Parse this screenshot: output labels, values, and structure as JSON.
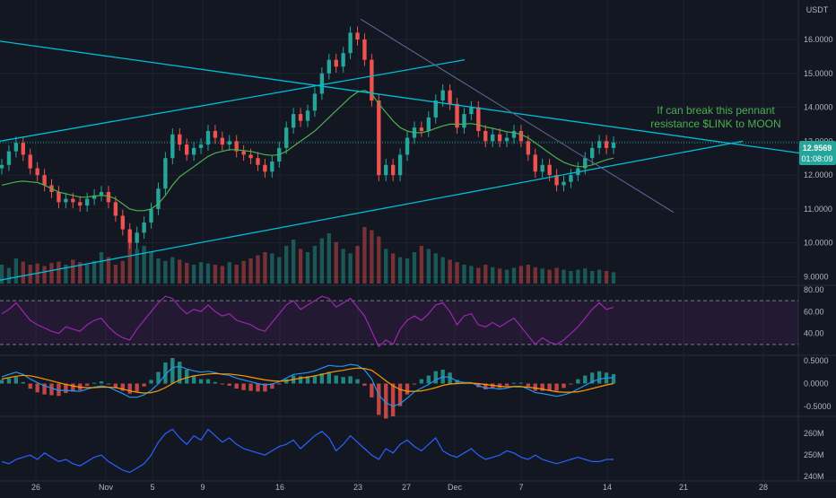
{
  "symbol_currency": "USDT",
  "colors": {
    "background": "#131722",
    "up": "#26a69a",
    "down": "#ef5350",
    "trendline": "#00bcd4",
    "ma": "#4caf50",
    "rsi": "#9c27b0",
    "macd": "#2196f3",
    "signal": "#ff9800",
    "obv": "#2962ff",
    "annotation": "#4caf50",
    "grid": "#1e222d"
  },
  "annotation": {
    "line1": "If can break this pennant",
    "line2": "resistance $LINK to MOON"
  },
  "price_badge": {
    "price": "12.9569",
    "countdown": "01:08:09"
  },
  "chart_data": [
    {
      "type": "candlestick",
      "panel": "price",
      "title": "",
      "y_ticks": [
        "16.0000",
        "15.0000",
        "14.0000",
        "13.0000",
        "12.0000",
        "11.0000",
        "10.0000",
        "9.0000"
      ],
      "ylim": [
        8.8,
        16.9
      ],
      "x_ticks": [
        "26",
        "Nov",
        "5",
        "9",
        "16",
        "23",
        "27",
        "Dec",
        "7",
        "14",
        "21",
        "28"
      ],
      "close_path": [
        12.3,
        12.7,
        12.95,
        12.6,
        12.2,
        12.0,
        11.7,
        11.5,
        11.2,
        11.3,
        11.2,
        11.1,
        11.3,
        11.4,
        11.5,
        11.2,
        10.8,
        10.4,
        10.0,
        10.3,
        10.6,
        11.0,
        11.6,
        12.5,
        13.2,
        12.9,
        12.6,
        12.8,
        12.9,
        13.3,
        13.1,
        12.9,
        13.0,
        12.7,
        12.6,
        12.5,
        12.3,
        12.1,
        12.4,
        12.8,
        13.4,
        13.8,
        13.6,
        13.9,
        14.4,
        15.0,
        15.4,
        15.2,
        15.6,
        16.2,
        16.0,
        15.4,
        14.2,
        12.0,
        12.3,
        12.0,
        12.6,
        13.1,
        13.4,
        13.3,
        13.7,
        14.2,
        14.5,
        14.1,
        13.4,
        13.8,
        14.0,
        13.3,
        13.0,
        13.2,
        13.0,
        13.1,
        13.3,
        13.0,
        12.6,
        12.1,
        12.3,
        12.0,
        11.7,
        11.8,
        12.0,
        12.2,
        12.5,
        12.8,
        13.0,
        12.8,
        12.96
      ],
      "volume_path": [
        0.3,
        0.25,
        0.4,
        0.35,
        0.3,
        0.32,
        0.28,
        0.33,
        0.35,
        0.3,
        0.38,
        0.34,
        0.3,
        0.36,
        0.5,
        0.42,
        0.3,
        0.36,
        0.7,
        0.55,
        0.6,
        0.5,
        0.4,
        0.36,
        0.42,
        0.38,
        0.33,
        0.3,
        0.34,
        0.32,
        0.3,
        0.28,
        0.34,
        0.3,
        0.36,
        0.4,
        0.45,
        0.5,
        0.48,
        0.42,
        0.6,
        0.7,
        0.55,
        0.5,
        0.6,
        0.72,
        0.8,
        0.66,
        0.55,
        0.48,
        0.6,
        0.9,
        0.85,
        0.75,
        0.55,
        0.48,
        0.42,
        0.4,
        0.5,
        0.6,
        0.55,
        0.48,
        0.42,
        0.38,
        0.34,
        0.3,
        0.28,
        0.25,
        0.3,
        0.26,
        0.24,
        0.22,
        0.25,
        0.28,
        0.3,
        0.26,
        0.24,
        0.22,
        0.25,
        0.22,
        0.2,
        0.22,
        0.24,
        0.2,
        0.22,
        0.2,
        0.18
      ],
      "ma_path": [
        11.7,
        11.75,
        11.8,
        11.82,
        11.8,
        11.78,
        11.7,
        11.6,
        11.5,
        11.45,
        11.4,
        11.35,
        11.35,
        11.38,
        11.4,
        11.38,
        11.3,
        11.15,
        11.0,
        10.95,
        10.95,
        11.0,
        11.15,
        11.4,
        11.7,
        11.95,
        12.1,
        12.25,
        12.4,
        12.55,
        12.65,
        12.7,
        12.75,
        12.75,
        12.72,
        12.7,
        12.65,
        12.6,
        12.58,
        12.6,
        12.7,
        12.85,
        13.0,
        13.15,
        13.3,
        13.5,
        13.7,
        13.9,
        14.1,
        14.3,
        14.45,
        14.5,
        14.4,
        14.1,
        13.85,
        13.6,
        13.4,
        13.3,
        13.25,
        13.25,
        13.3,
        13.38,
        13.45,
        13.5,
        13.5,
        13.5,
        13.52,
        13.48,
        13.42,
        13.38,
        13.33,
        13.28,
        13.25,
        13.2,
        13.1,
        12.95,
        12.8,
        12.65,
        12.5,
        12.38,
        12.3,
        12.25,
        12.25,
        12.3,
        12.38,
        12.45,
        12.5
      ],
      "last_price": 12.9569
    },
    {
      "type": "line",
      "panel": "rsi",
      "y_ticks": [
        "80.00",
        "60.00",
        "40.00"
      ],
      "ylim": [
        20,
        84
      ],
      "bands": [
        70,
        30
      ],
      "values": [
        58,
        62,
        68,
        60,
        52,
        48,
        45,
        42,
        40,
        46,
        44,
        42,
        48,
        52,
        54,
        46,
        40,
        36,
        34,
        44,
        52,
        60,
        68,
        74,
        72,
        64,
        58,
        62,
        60,
        66,
        60,
        56,
        58,
        52,
        50,
        48,
        44,
        42,
        50,
        58,
        66,
        70,
        62,
        66,
        70,
        74,
        72,
        64,
        68,
        72,
        64,
        56,
        42,
        28,
        34,
        30,
        44,
        52,
        56,
        52,
        58,
        66,
        68,
        60,
        48,
        56,
        58,
        48,
        46,
        50,
        46,
        50,
        54,
        46,
        38,
        30,
        36,
        32,
        30,
        34,
        40,
        46,
        54,
        62,
        68,
        62,
        64
      ]
    },
    {
      "type": "line",
      "panel": "macd",
      "y_ticks": [
        "0.5000",
        "0.0000",
        "-0.5000"
      ],
      "ylim": [
        -0.72,
        0.62
      ],
      "series": [
        {
          "key": "macd",
          "values": [
            0.15,
            0.2,
            0.25,
            0.2,
            0.1,
            0.02,
            -0.05,
            -0.1,
            -0.15,
            -0.15,
            -0.16,
            -0.17,
            -0.12,
            -0.08,
            -0.05,
            -0.08,
            -0.15,
            -0.22,
            -0.3,
            -0.3,
            -0.25,
            -0.15,
            0.0,
            0.2,
            0.35,
            0.38,
            0.32,
            0.28,
            0.25,
            0.27,
            0.24,
            0.2,
            0.18,
            0.12,
            0.08,
            0.04,
            0.0,
            -0.03,
            -0.01,
            0.04,
            0.12,
            0.2,
            0.22,
            0.24,
            0.28,
            0.34,
            0.4,
            0.38,
            0.38,
            0.42,
            0.4,
            0.3,
            0.1,
            -0.25,
            -0.42,
            -0.5,
            -0.44,
            -0.32,
            -0.18,
            -0.1,
            -0.02,
            0.08,
            0.15,
            0.14,
            0.05,
            0.02,
            0.02,
            -0.05,
            -0.1,
            -0.1,
            -0.12,
            -0.1,
            -0.06,
            -0.06,
            -0.12,
            -0.2,
            -0.22,
            -0.25,
            -0.28,
            -0.25,
            -0.2,
            -0.12,
            -0.04,
            0.04,
            0.1,
            0.12,
            0.13
          ]
        },
        {
          "key": "signal",
          "values": [
            0.1,
            0.13,
            0.16,
            0.18,
            0.17,
            0.14,
            0.1,
            0.06,
            0.02,
            -0.02,
            -0.05,
            -0.08,
            -0.09,
            -0.09,
            -0.08,
            -0.08,
            -0.09,
            -0.12,
            -0.16,
            -0.19,
            -0.21,
            -0.2,
            -0.16,
            -0.09,
            0.0,
            0.08,
            0.13,
            0.17,
            0.19,
            0.21,
            0.22,
            0.21,
            0.21,
            0.19,
            0.17,
            0.14,
            0.11,
            0.08,
            0.06,
            0.05,
            0.06,
            0.09,
            0.12,
            0.14,
            0.17,
            0.2,
            0.24,
            0.27,
            0.29,
            0.32,
            0.34,
            0.33,
            0.29,
            0.18,
            0.06,
            -0.05,
            -0.13,
            -0.17,
            -0.17,
            -0.16,
            -0.13,
            -0.09,
            -0.04,
            -0.01,
            0.0,
            0.01,
            0.01,
            0.0,
            -0.02,
            -0.04,
            -0.06,
            -0.07,
            -0.07,
            -0.07,
            -0.08,
            -0.1,
            -0.12,
            -0.15,
            -0.18,
            -0.19,
            -0.19,
            -0.18,
            -0.15,
            -0.11,
            -0.07,
            -0.03,
            0.0
          ]
        }
      ]
    },
    {
      "type": "line",
      "panel": "obv",
      "y_ticks": [
        "260M",
        "250M",
        "240M"
      ],
      "ylim": [
        238,
        268
      ],
      "values": [
        247,
        246,
        248,
        249,
        250,
        248,
        251,
        249,
        247,
        248,
        246,
        245,
        247,
        249,
        250,
        247,
        245,
        243,
        242,
        244,
        246,
        250,
        256,
        260,
        262,
        258,
        255,
        259,
        257,
        262,
        259,
        256,
        258,
        255,
        253,
        252,
        251,
        250,
        252,
        254,
        255,
        257,
        253,
        256,
        259,
        261,
        258,
        252,
        255,
        259,
        256,
        253,
        250,
        248,
        253,
        251,
        255,
        257,
        254,
        252,
        255,
        258,
        252,
        250,
        249,
        251,
        253,
        250,
        248,
        249,
        250,
        252,
        251,
        249,
        248,
        250,
        248,
        247,
        246,
        247,
        248,
        249,
        248,
        247,
        247,
        248,
        248
      ]
    }
  ]
}
